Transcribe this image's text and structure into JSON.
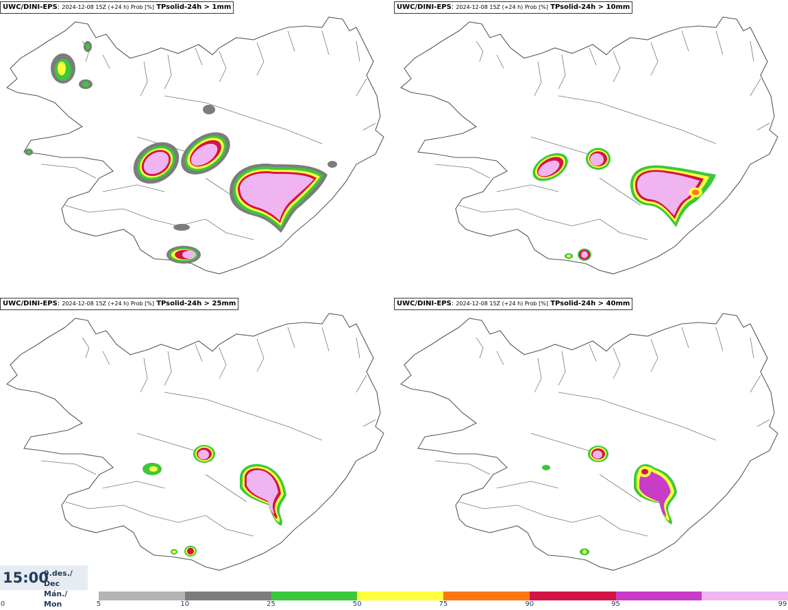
{
  "panels": [
    {
      "model": "UWC/DINI-EPS",
      "meta": "2024-12-08 15Z (+24 h) Prob [%]",
      "param": "TPsolid-24h > 1mm"
    },
    {
      "model": "UWC/DINI-EPS",
      "meta": "2024-12-08 15Z (+24 h) Prob [%]",
      "param": "TPsolid-24h > 10mm"
    },
    {
      "model": "UWC/DINI-EPS",
      "meta": "2024-12-08 15Z (+24 h) Prob [%]",
      "param": "TPsolid-24h > 25mm"
    },
    {
      "model": "UWC/DINI-EPS",
      "meta": "2024-12-08 15Z (+24 h) Prob [%]",
      "param": "TPsolid-24h > 40mm"
    }
  ],
  "valid_time": {
    "time": "15:00",
    "date_line1": "9.des./ Dec",
    "date_line2": "Mán./ Mon"
  },
  "legend": {
    "ticks": [
      "0",
      "5",
      "10",
      "25",
      "50",
      "75",
      "90",
      "95",
      "99"
    ],
    "colors": [
      "#b4b4b4",
      "#7c7c7c",
      "#3cc83c",
      "#ffff3c",
      "#ff7814",
      "#d21446",
      "#c83cc8",
      "#f0b4f0"
    ]
  },
  "colors": {
    "level_5": "#b4b4b4",
    "level_10": "#7c7c7c",
    "level_25": "#3cc83c",
    "level_50": "#ffff3c",
    "level_75": "#ff7814",
    "level_90": "#d21446",
    "level_95": "#c83cc8",
    "level_99": "#f0b4f0"
  }
}
